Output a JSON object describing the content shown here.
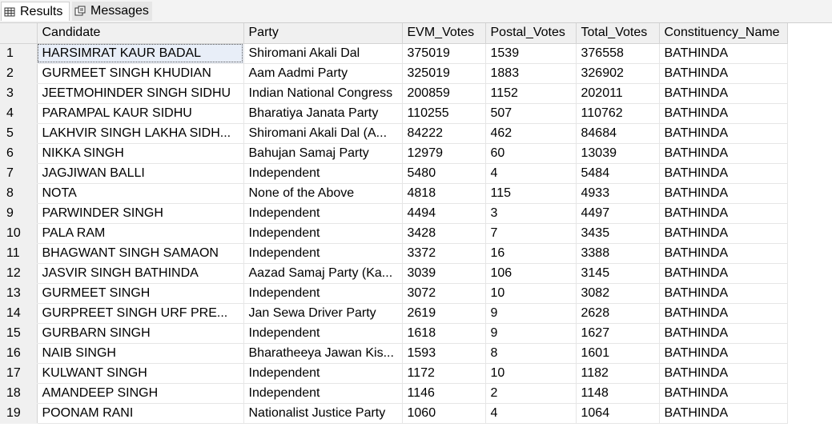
{
  "tabs": [
    {
      "label": "Results",
      "icon": "grid-icon"
    },
    {
      "label": "Messages",
      "icon": "messages-icon"
    }
  ],
  "grid": {
    "columns": [
      "Candidate",
      "Party",
      "EVM_Votes",
      "Postal_Votes",
      "Total_Votes",
      "Constituency_Name"
    ],
    "rows": [
      [
        "1",
        "HARSIMRAT KAUR BADAL",
        "Shiromani Akali Dal",
        "375019",
        "1539",
        "376558",
        "BATHINDA"
      ],
      [
        "2",
        "GURMEET SINGH KHUDIAN",
        "Aam Aadmi Party",
        "325019",
        "1883",
        "326902",
        "BATHINDA"
      ],
      [
        "3",
        "JEETMOHINDER SINGH SIDHU",
        "Indian National Congress",
        "200859",
        "1152",
        "202011",
        "BATHINDA"
      ],
      [
        "4",
        "PARAMPAL KAUR SIDHU",
        "Bharatiya Janata Party",
        "110255",
        "507",
        "110762",
        "BATHINDA"
      ],
      [
        "5",
        "LAKHVIR SINGH LAKHA SIDH...",
        "Shiromani Akali Dal (A...",
        "84222",
        "462",
        "84684",
        "BATHINDA"
      ],
      [
        "6",
        "NIKKA SINGH",
        "Bahujan Samaj Party",
        "12979",
        "60",
        "13039",
        "BATHINDA"
      ],
      [
        "7",
        "JAGJIWAN BALLI",
        "Independent",
        "5480",
        "4",
        "5484",
        "BATHINDA"
      ],
      [
        "8",
        "NOTA",
        "None of the Above",
        "4818",
        "115",
        "4933",
        "BATHINDA"
      ],
      [
        "9",
        "PARWINDER SINGH",
        "Independent",
        "4494",
        "3",
        "4497",
        "BATHINDA"
      ],
      [
        "10",
        "PALA RAM",
        "Independent",
        "3428",
        "7",
        "3435",
        "BATHINDA"
      ],
      [
        "11",
        "BHAGWANT SINGH SAMAON",
        "Independent",
        "3372",
        "16",
        "3388",
        "BATHINDA"
      ],
      [
        "12",
        "JASVIR SINGH BATHINDA",
        "Aazad Samaj Party (Ka...",
        "3039",
        "106",
        "3145",
        "BATHINDA"
      ],
      [
        "13",
        "GURMEET SINGH",
        "Independent",
        "3072",
        "10",
        "3082",
        "BATHINDA"
      ],
      [
        "14",
        "GURPREET SINGH URF PRE...",
        "Jan Sewa Driver Party",
        "2619",
        "9",
        "2628",
        "BATHINDA"
      ],
      [
        "15",
        "GURBARN SINGH",
        "Independent",
        "1618",
        "9",
        "1627",
        "BATHINDA"
      ],
      [
        "16",
        "NAIB SINGH",
        "Bharatheeya Jawan Kis...",
        "1593",
        "8",
        "1601",
        "BATHINDA"
      ],
      [
        "17",
        "KULWANT SINGH",
        "Independent",
        "1172",
        "10",
        "1182",
        "BATHINDA"
      ],
      [
        "18",
        "AMANDEEP SINGH",
        "Independent",
        "1146",
        "2",
        "1148",
        "BATHINDA"
      ],
      [
        "19",
        "POONAM RANI",
        "Nationalist Justice Party",
        "1060",
        "4",
        "1064",
        "BATHINDA"
      ]
    ]
  }
}
